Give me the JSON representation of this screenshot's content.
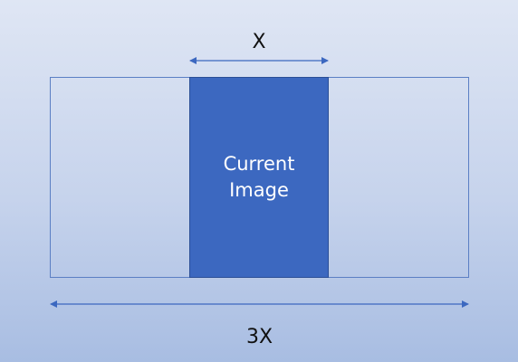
{
  "diagram": {
    "inner_box_label": "Current\nImage",
    "inner_width_label": "X",
    "outer_width_label": "3X"
  },
  "colors": {
    "inner_box_fill": "#3c68c0",
    "frame_stroke": "#5b7fc4",
    "arrow_stroke": "#3c68c0",
    "background_top": "#dfe6f4",
    "background_bottom": "#a8bde2"
  }
}
